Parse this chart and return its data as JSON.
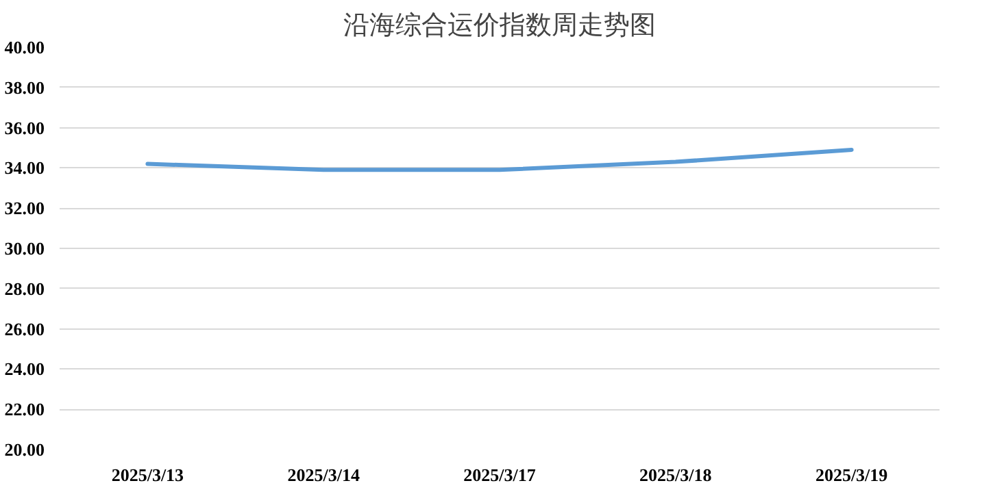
{
  "chart_data": {
    "type": "line",
    "title": "沿海综合运价指数周走势图",
    "categories": [
      "2025/3/13",
      "2025/3/14",
      "2025/3/17",
      "2025/3/18",
      "2025/3/19"
    ],
    "series": [
      {
        "color": "#5b9bd5",
        "values": [
          34.2,
          33.9,
          33.9,
          34.3,
          34.9
        ]
      }
    ],
    "ylim": [
      20,
      40
    ],
    "yticks": [
      {
        "value": 20,
        "label": "20.00"
      },
      {
        "value": 22,
        "label": "22.00"
      },
      {
        "value": 24,
        "label": "24.00"
      },
      {
        "value": 26,
        "label": "26.00"
      },
      {
        "value": 28,
        "label": "28.00"
      },
      {
        "value": 30,
        "label": "30.00"
      },
      {
        "value": 32,
        "label": "32.00"
      },
      {
        "value": 34,
        "label": "34.00"
      },
      {
        "value": 36,
        "label": "36.00"
      },
      {
        "value": 38,
        "label": "38.00"
      },
      {
        "value": 40,
        "label": "40.00"
      }
    ],
    "grid": "y",
    "marker": "none",
    "line_style": "solid"
  }
}
